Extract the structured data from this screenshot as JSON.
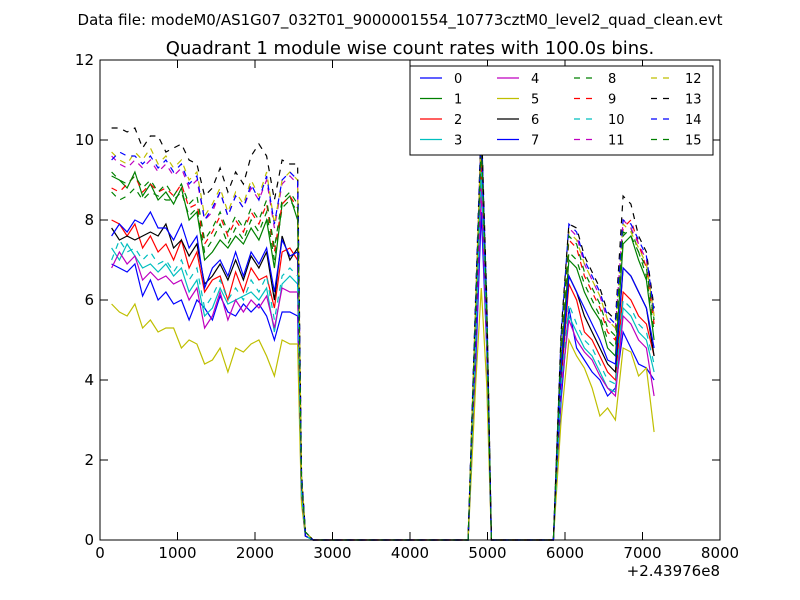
{
  "header": {
    "suptitle": "Data file: modeM0/AS1G07_032T01_9000001554_10773cztM0_level2_quad_clean.evt"
  },
  "chart_data": {
    "type": "line",
    "title": "Quadrant 1 module wise count rates with 100.0s bins.",
    "xlabel": "",
    "ylabel": "",
    "x_offset_label": "+2.43976e8",
    "xlim": [
      0,
      8000
    ],
    "ylim": [
      0,
      12
    ],
    "xticks": [
      0,
      1000,
      2000,
      3000,
      4000,
      5000,
      6000,
      7000,
      8000
    ],
    "yticks": [
      0,
      2,
      4,
      6,
      8,
      10,
      12
    ],
    "grid": false,
    "legend_position": "top-right",
    "legend_columns": 4,
    "x": [
      150,
      250,
      350,
      450,
      550,
      650,
      750,
      850,
      950,
      1050,
      1150,
      1250,
      1350,
      1450,
      1550,
      1650,
      1750,
      1850,
      1950,
      2050,
      2150,
      2250,
      2350,
      2450,
      2550,
      2600,
      2650,
      2750,
      2850,
      3000,
      3500,
      4000,
      4500,
      4750,
      4850,
      4920,
      4990,
      5050,
      5150,
      5500,
      5850,
      5950,
      6050,
      6150,
      6250,
      6350,
      6450,
      6550,
      6650,
      6750,
      6850,
      6950,
      7050,
      7150
    ],
    "series": [
      {
        "name": "0",
        "color": "#0000ff",
        "dash": "solid",
        "values": [
          6.9,
          6.8,
          6.7,
          6.9,
          6.1,
          6.5,
          6.0,
          6.2,
          5.9,
          6.0,
          5.5,
          6.0,
          5.8,
          5.5,
          6.1,
          5.7,
          5.6,
          5.9,
          5.7,
          5.9,
          5.6,
          5.0,
          5.7,
          5.7,
          5.6,
          1.0,
          0.1,
          0,
          0,
          0,
          0,
          0,
          0,
          0,
          4.5,
          8.2,
          4.8,
          0,
          0,
          0,
          0,
          3.5,
          5.8,
          4.8,
          4.5,
          4.2,
          4.0,
          3.6,
          3.8,
          5.2,
          4.8,
          4.4,
          4.3,
          4.0
        ]
      },
      {
        "name": "1",
        "color": "#008000",
        "dash": "solid",
        "values": [
          9.1,
          9.0,
          8.8,
          9.2,
          8.6,
          8.9,
          8.5,
          8.7,
          8.4,
          8.8,
          8.0,
          8.2,
          7.0,
          7.2,
          7.5,
          7.3,
          7.6,
          7.4,
          7.8,
          7.5,
          8.0,
          6.8,
          8.4,
          8.6,
          8.0,
          1.5,
          0.2,
          0,
          0,
          0,
          0,
          0,
          0,
          0,
          5.5,
          9.8,
          5.5,
          0,
          0,
          0,
          0,
          4.5,
          7.0,
          6.8,
          6.2,
          5.8,
          5.5,
          4.8,
          4.6,
          7.4,
          7.6,
          7.0,
          6.5,
          5.0
        ]
      },
      {
        "name": "2",
        "color": "#ff0000",
        "dash": "solid",
        "values": [
          8.0,
          7.9,
          7.6,
          7.9,
          7.3,
          7.6,
          7.2,
          7.4,
          7.0,
          7.5,
          6.8,
          7.2,
          6.2,
          6.5,
          6.6,
          6.0,
          6.7,
          6.2,
          6.8,
          6.5,
          6.6,
          5.8,
          7.2,
          7.3,
          7.0,
          1.2,
          0.1,
          0,
          0,
          0,
          0,
          0,
          0,
          0,
          5.2,
          9.4,
          5.2,
          0,
          0,
          0,
          0,
          4.0,
          6.4,
          6.0,
          5.2,
          5.0,
          4.6,
          4.2,
          4.0,
          6.2,
          6.0,
          5.6,
          5.4,
          4.6
        ]
      },
      {
        "name": "3",
        "color": "#00bfbf",
        "dash": "solid",
        "values": [
          7.3,
          7.0,
          7.4,
          7.1,
          6.8,
          6.9,
          6.7,
          6.9,
          6.6,
          6.8,
          6.2,
          6.5,
          5.6,
          5.8,
          6.3,
          5.9,
          6.0,
          6.1,
          6.2,
          6.0,
          6.3,
          5.2,
          6.4,
          6.6,
          6.4,
          1.1,
          0.1,
          0,
          0,
          0,
          0,
          0,
          0,
          0,
          5.0,
          9.0,
          5.0,
          0,
          0,
          0,
          0,
          3.8,
          5.6,
          5.2,
          4.8,
          4.6,
          4.2,
          3.8,
          3.7,
          5.8,
          5.6,
          5.2,
          5.0,
          4.2
        ]
      },
      {
        "name": "4",
        "color": "#bf00bf",
        "dash": "solid",
        "values": [
          6.8,
          7.2,
          6.9,
          7.1,
          6.5,
          6.7,
          6.5,
          6.6,
          6.4,
          6.5,
          6.0,
          6.3,
          5.3,
          5.6,
          6.2,
          5.5,
          6.0,
          5.7,
          6.0,
          5.8,
          6.1,
          5.3,
          6.3,
          6.2,
          6.2,
          1.1,
          0.1,
          0,
          0,
          0,
          0,
          0,
          0,
          0,
          4.9,
          8.8,
          4.9,
          0,
          0,
          0,
          0,
          3.8,
          5.5,
          5.0,
          4.7,
          4.5,
          4.1,
          3.8,
          3.6,
          5.6,
          5.4,
          5.0,
          4.8,
          3.6
        ]
      },
      {
        "name": "5",
        "color": "#bfbf00",
        "dash": "solid",
        "values": [
          5.9,
          5.7,
          5.6,
          5.9,
          5.3,
          5.5,
          5.2,
          5.3,
          5.3,
          4.8,
          5.0,
          4.9,
          4.4,
          4.5,
          4.8,
          4.2,
          4.8,
          4.7,
          4.9,
          5.0,
          4.6,
          4.1,
          5.0,
          4.9,
          4.9,
          0.9,
          0.1,
          0,
          0,
          0,
          0,
          0,
          0,
          0,
          4.0,
          6.3,
          3.9,
          0,
          0,
          0,
          0,
          3.0,
          5.0,
          4.6,
          4.3,
          3.8,
          3.1,
          3.3,
          3.0,
          4.8,
          4.7,
          4.1,
          4.3,
          2.7
        ]
      },
      {
        "name": "6",
        "color": "#000000",
        "dash": "solid",
        "values": [
          7.8,
          7.5,
          7.6,
          7.5,
          7.6,
          7.7,
          7.6,
          7.9,
          7.3,
          7.5,
          7.1,
          7.4,
          6.4,
          6.6,
          6.9,
          6.5,
          7.0,
          6.5,
          7.1,
          6.8,
          7.2,
          6.0,
          7.6,
          7.0,
          7.3,
          1.3,
          0.1,
          0,
          0,
          0,
          0,
          0,
          0,
          0,
          5.3,
          10.6,
          5.3,
          0,
          0,
          0,
          0,
          4.2,
          6.6,
          6.2,
          5.6,
          5.2,
          4.8,
          4.4,
          4.2,
          6.8,
          6.6,
          6.2,
          5.8,
          4.6
        ]
      },
      {
        "name": "7",
        "color": "#0000ff",
        "dash": "solid",
        "values": [
          7.6,
          7.9,
          7.7,
          8.0,
          7.9,
          8.2,
          7.8,
          7.8,
          7.5,
          7.9,
          7.3,
          7.6,
          6.3,
          6.8,
          7.0,
          6.6,
          7.2,
          6.6,
          7.2,
          6.9,
          7.3,
          6.2,
          7.5,
          7.1,
          7.2,
          1.3,
          0.1,
          0,
          0,
          0,
          0,
          0,
          0,
          0,
          5.4,
          10.2,
          5.4,
          0,
          0,
          0,
          0,
          4.3,
          6.6,
          6.2,
          5.8,
          5.4,
          5.0,
          4.5,
          4.4,
          6.8,
          6.6,
          6.2,
          5.8,
          4.8
        ]
      },
      {
        "name": "8",
        "color": "#008000",
        "dash": "dashed",
        "values": [
          8.7,
          8.5,
          8.6,
          8.8,
          8.5,
          8.7,
          8.6,
          8.5,
          8.5,
          8.7,
          8.1,
          8.3,
          7.2,
          7.5,
          7.9,
          7.4,
          7.8,
          7.5,
          8.0,
          7.7,
          8.2,
          7.0,
          8.3,
          8.5,
          8.2,
          1.5,
          0.2,
          0,
          0,
          0,
          0,
          0,
          0,
          0,
          5.8,
          9.9,
          5.6,
          0,
          0,
          0,
          0,
          4.7,
          7.2,
          7.0,
          6.4,
          6.0,
          5.6,
          5.0,
          4.8,
          7.6,
          7.8,
          7.2,
          6.6,
          5.2
        ]
      },
      {
        "name": "9",
        "color": "#ff0000",
        "dash": "dashed",
        "values": [
          8.8,
          8.7,
          8.9,
          9.1,
          8.7,
          8.9,
          8.7,
          8.8,
          8.6,
          8.9,
          8.3,
          8.4,
          7.4,
          7.7,
          8.1,
          7.6,
          8.0,
          7.7,
          8.2,
          7.9,
          8.4,
          7.2,
          8.4,
          8.6,
          8.3,
          1.5,
          0.2,
          0,
          0,
          0,
          0,
          0,
          0,
          0,
          5.9,
          10.0,
          5.7,
          0,
          0,
          0,
          0,
          4.8,
          7.5,
          7.3,
          6.6,
          6.2,
          5.8,
          5.2,
          5.0,
          7.8,
          8.0,
          7.4,
          6.8,
          5.4
        ]
      },
      {
        "name": "10",
        "color": "#00bfbf",
        "dash": "dashed",
        "values": [
          7.0,
          7.5,
          7.2,
          7.3,
          7.0,
          7.2,
          6.9,
          7.0,
          6.7,
          7.0,
          6.5,
          6.8,
          5.8,
          6.1,
          6.5,
          6.0,
          6.3,
          6.0,
          6.5,
          6.2,
          6.6,
          5.5,
          6.6,
          6.8,
          6.6,
          1.2,
          0.1,
          0,
          0,
          0,
          0,
          0,
          0,
          0,
          5.1,
          9.2,
          5.1,
          0,
          0,
          0,
          0,
          3.9,
          5.9,
          5.4,
          5.0,
          4.8,
          4.4,
          4.0,
          3.9,
          6.0,
          5.8,
          5.4,
          5.2,
          4.4
        ]
      },
      {
        "name": "11",
        "color": "#bf00bf",
        "dash": "dashed",
        "values": [
          9.6,
          9.4,
          9.3,
          9.5,
          9.3,
          9.5,
          9.2,
          9.4,
          9.1,
          9.3,
          8.8,
          9.0,
          8.0,
          8.2,
          8.7,
          8.1,
          8.6,
          8.3,
          8.8,
          8.5,
          9.0,
          7.8,
          8.9,
          9.1,
          8.9,
          1.6,
          0.2,
          0,
          0,
          0,
          0,
          0,
          0,
          0,
          6.1,
          10.3,
          5.9,
          0,
          0,
          0,
          0,
          5.0,
          7.8,
          7.6,
          6.9,
          6.5,
          6.1,
          5.5,
          5.3,
          8.0,
          7.8,
          7.4,
          7.0,
          5.6
        ]
      },
      {
        "name": "12",
        "color": "#bfbf00",
        "dash": "dashed",
        "values": [
          9.7,
          9.5,
          9.4,
          9.7,
          9.5,
          9.8,
          9.4,
          9.6,
          9.3,
          9.5,
          9.0,
          9.2,
          8.1,
          8.4,
          8.8,
          8.2,
          8.7,
          8.4,
          9.0,
          8.6,
          9.2,
          7.9,
          9.0,
          9.2,
          9.0,
          1.6,
          0.2,
          0,
          0,
          0,
          0,
          0,
          0,
          0,
          6.1,
          10.2,
          5.9,
          0,
          0,
          0,
          0,
          5.0,
          7.7,
          7.5,
          6.9,
          6.5,
          6.1,
          5.5,
          5.3,
          7.9,
          7.7,
          7.3,
          6.9,
          5.6
        ]
      },
      {
        "name": "13",
        "color": "#000000",
        "dash": "dashed",
        "values": [
          10.3,
          10.3,
          10.2,
          10.3,
          9.8,
          10.1,
          10.1,
          9.7,
          9.8,
          9.9,
          9.5,
          9.4,
          8.6,
          8.8,
          9.3,
          8.7,
          9.2,
          8.9,
          9.6,
          9.9,
          9.6,
          8.5,
          9.5,
          9.4,
          9.4,
          1.7,
          0.2,
          0,
          0,
          0,
          0,
          0,
          0,
          0,
          6.3,
          10.5,
          6.1,
          0,
          0,
          0,
          0,
          5.2,
          7.9,
          7.8,
          7.1,
          6.7,
          6.3,
          5.7,
          5.5,
          8.6,
          8.4,
          7.6,
          7.2,
          5.8
        ]
      },
      {
        "name": "14",
        "color": "#0000ff",
        "dash": "dashed",
        "values": [
          9.5,
          9.7,
          9.6,
          9.6,
          9.4,
          9.6,
          9.3,
          9.5,
          9.2,
          9.4,
          8.9,
          9.1,
          8.0,
          8.3,
          8.7,
          8.1,
          8.6,
          8.3,
          8.9,
          8.5,
          9.1,
          7.9,
          9.0,
          9.2,
          9.0,
          1.6,
          0.2,
          0,
          0,
          0,
          0,
          0,
          0,
          0,
          6.2,
          10.3,
          6.0,
          0,
          0,
          0,
          0,
          5.1,
          7.9,
          7.7,
          7.0,
          6.6,
          6.2,
          5.6,
          5.4,
          8.0,
          7.9,
          7.5,
          7.1,
          5.7
        ]
      },
      {
        "name": "15",
        "color": "#008000",
        "dash": "dashed",
        "values": [
          9.2,
          9.0,
          8.9,
          9.1,
          8.8,
          9.0,
          8.7,
          8.9,
          8.6,
          8.9,
          8.4,
          8.6,
          7.5,
          7.8,
          8.2,
          7.7,
          8.1,
          7.8,
          8.3,
          8.0,
          8.5,
          7.3,
          8.5,
          8.7,
          8.4,
          1.5,
          0.2,
          0,
          0,
          0,
          0,
          0,
          0,
          0,
          6.0,
          10.0,
          5.8,
          0,
          0,
          0,
          0,
          4.9,
          7.6,
          7.4,
          6.7,
          6.3,
          5.9,
          5.3,
          5.1,
          7.7,
          7.6,
          7.2,
          6.8,
          5.5
        ]
      }
    ]
  }
}
